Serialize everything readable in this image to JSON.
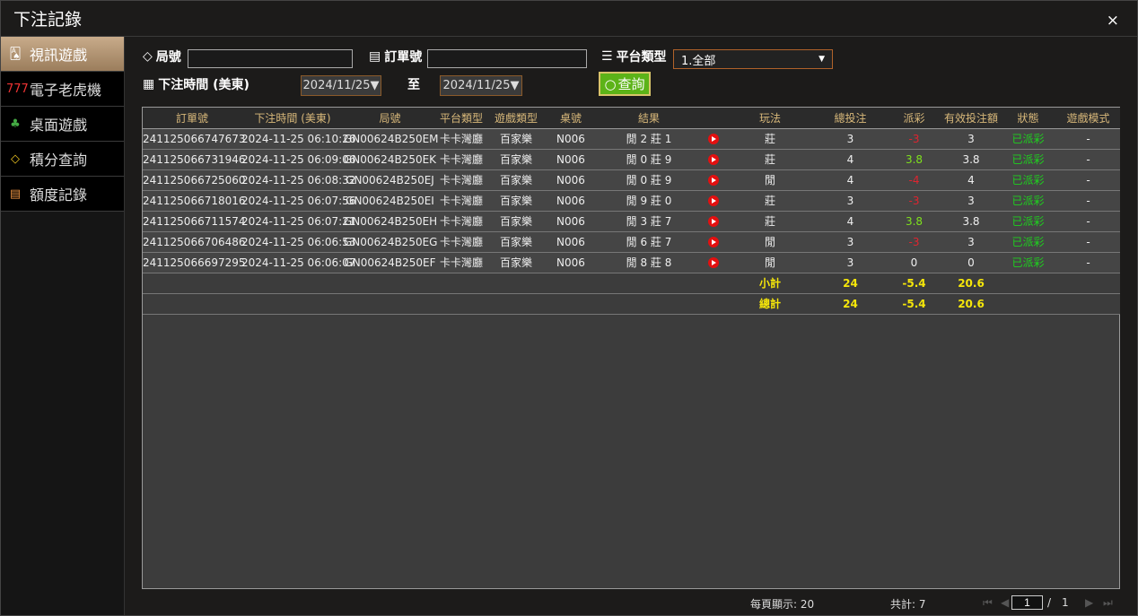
{
  "title": "下注記錄",
  "close": "×",
  "sidebar": {
    "items": [
      {
        "label": "視訊遊戲",
        "icon": "🂡"
      },
      {
        "label": "電子老虎機",
        "icon": "777"
      },
      {
        "label": "桌面遊戲",
        "icon": "♣"
      },
      {
        "label": "積分查詢",
        "icon": "◇"
      },
      {
        "label": "額度記錄",
        "icon": "▤"
      }
    ]
  },
  "filters": {
    "round_label": "局號",
    "round_value": "",
    "order_label": "訂單號",
    "order_value": "",
    "platform_label": "平台類型",
    "platform_value": "1.全部",
    "time_label": "下注時間 (美東)",
    "date_from": "2024/11/25▼",
    "to_label": "至",
    "date_to": "2024/11/25▼",
    "search_label": "查詢"
  },
  "table": {
    "headers": [
      "訂單號",
      "下注時間 (美東)",
      "局號",
      "平台類型",
      "遊戲類型",
      "桌號",
      "結果",
      "",
      "玩法",
      "總投注",
      "派彩",
      "有效投注額",
      "狀態",
      "遊戲模式"
    ],
    "rows": [
      [
        "241125066747673",
        "2024-11-25 06:10:26",
        "GN00624B250EM",
        "卡卡灣廳",
        "百家樂",
        "N006",
        "閒 2 莊 1",
        "",
        "莊",
        "3",
        "-3",
        "3",
        "已派彩",
        "-"
      ],
      [
        "241125066731946",
        "2024-11-25 06:09:06",
        "GN00624B250EK",
        "卡卡灣廳",
        "百家樂",
        "N006",
        "閒 0 莊 9",
        "",
        "莊",
        "4",
        "3.8",
        "3.8",
        "已派彩",
        "-"
      ],
      [
        "241125066725060",
        "2024-11-25 06:08:32",
        "GN00624B250EJ",
        "卡卡灣廳",
        "百家樂",
        "N006",
        "閒 0 莊 9",
        "",
        "閒",
        "4",
        "-4",
        "4",
        "已派彩",
        "-"
      ],
      [
        "241125066718016",
        "2024-11-25 06:07:56",
        "GN00624B250EI",
        "卡卡灣廳",
        "百家樂",
        "N006",
        "閒 9 莊 0",
        "",
        "莊",
        "3",
        "-3",
        "3",
        "已派彩",
        "-"
      ],
      [
        "241125066711574",
        "2024-11-25 06:07:21",
        "GN00624B250EH",
        "卡卡灣廳",
        "百家樂",
        "N006",
        "閒 3 莊 7",
        "",
        "莊",
        "4",
        "3.8",
        "3.8",
        "已派彩",
        "-"
      ],
      [
        "241125066706486",
        "2024-11-25 06:06:53",
        "GN00624B250EG",
        "卡卡灣廳",
        "百家樂",
        "N006",
        "閒 6 莊 7",
        "",
        "閒",
        "3",
        "-3",
        "3",
        "已派彩",
        "-"
      ],
      [
        "241125066697295",
        "2024-11-25 06:06:07",
        "GN00624B250EF",
        "卡卡灣廳",
        "百家樂",
        "N006",
        "閒 8 莊 8",
        "",
        "閒",
        "3",
        "0",
        "0",
        "已派彩",
        "-"
      ]
    ],
    "subtotal": {
      "label": "小計",
      "bet": "24",
      "payout": "-5.4",
      "valid": "20.6"
    },
    "total": {
      "label": "總計",
      "bet": "24",
      "payout": "-5.4",
      "valid": "20.6"
    }
  },
  "footer": {
    "per_page": "每頁顯示: 20",
    "total_count": "共計: 7",
    "page": "1",
    "page_sep": "/",
    "page_total": "1"
  },
  "colors": {
    "negative": "#e0242f",
    "positive": "#7ee11d",
    "status": "#1ed01e",
    "sum": "#f5e60a",
    "header": "#d8b87a"
  }
}
